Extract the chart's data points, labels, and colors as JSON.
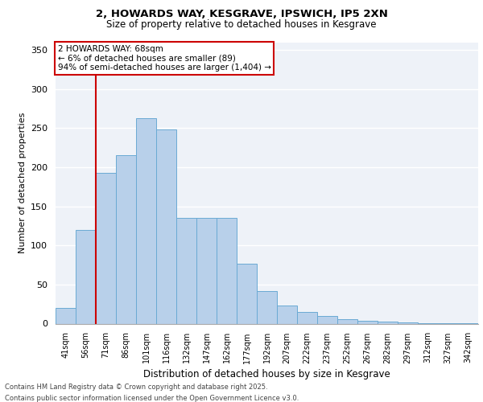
{
  "title_line1": "2, HOWARDS WAY, KESGRAVE, IPSWICH, IP5 2XN",
  "title_line2": "Size of property relative to detached houses in Kesgrave",
  "xlabel": "Distribution of detached houses by size in Kesgrave",
  "ylabel": "Number of detached properties",
  "categories": [
    "41sqm",
    "56sqm",
    "71sqm",
    "86sqm",
    "101sqm",
    "116sqm",
    "132sqm",
    "147sqm",
    "162sqm",
    "177sqm",
    "192sqm",
    "207sqm",
    "222sqm",
    "237sqm",
    "252sqm",
    "267sqm",
    "282sqm",
    "297sqm",
    "312sqm",
    "327sqm",
    "342sqm"
  ],
  "values": [
    20,
    120,
    193,
    215,
    263,
    248,
    135,
    135,
    135,
    77,
    42,
    23,
    15,
    10,
    6,
    4,
    3,
    2,
    1,
    1,
    1
  ],
  "bar_color": "#b8d0ea",
  "bar_edge_color": "#6aaad4",
  "marker_label": "2 HOWARDS WAY: 68sqm\n← 6% of detached houses are smaller (89)\n94% of semi-detached houses are larger (1,404) →",
  "vline_color": "#cc0000",
  "vline_x": 1.5,
  "annotation_box_color": "#cc0000",
  "ylim": [
    0,
    360
  ],
  "yticks": [
    0,
    50,
    100,
    150,
    200,
    250,
    300,
    350
  ],
  "background_color": "#eef2f8",
  "grid_color": "#ffffff",
  "footer_line1": "Contains HM Land Registry data © Crown copyright and database right 2025.",
  "footer_line2": "Contains public sector information licensed under the Open Government Licence v3.0."
}
